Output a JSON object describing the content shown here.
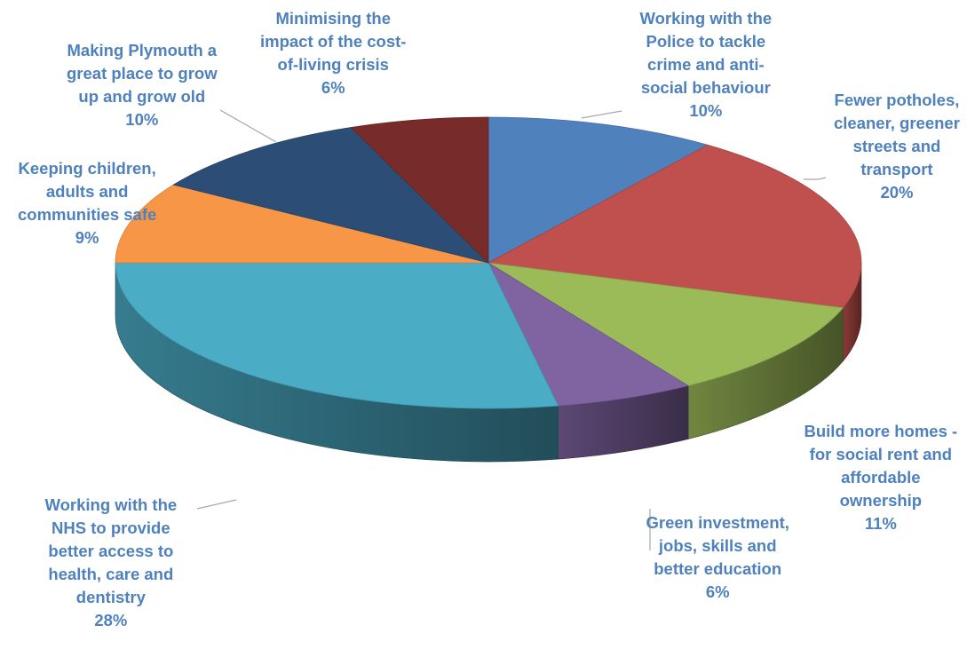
{
  "chart_data": {
    "type": "pie",
    "title": "",
    "three_d": true,
    "legend": "none",
    "slices": [
      {
        "lines": [
          "Working with the",
          "Police to tackle",
          "crime and anti-",
          "social behaviour"
        ],
        "value": 10,
        "pct_label": "10%",
        "color": "#4F81BD"
      },
      {
        "lines": [
          "Fewer potholes,",
          "cleaner, greener",
          "streets and",
          "transport"
        ],
        "value": 20,
        "pct_label": "20%",
        "color": "#C0504D"
      },
      {
        "lines": [
          "Build more homes -",
          "for social rent and",
          "affordable",
          "ownership"
        ],
        "value": 11,
        "pct_label": "11%",
        "color": "#9BBB59"
      },
      {
        "lines": [
          "Green investment,",
          "jobs, skills and",
          "better education"
        ],
        "value": 6,
        "pct_label": "6%",
        "color": "#8064A2"
      },
      {
        "lines": [
          "Working with the",
          "NHS to provide",
          "better access to",
          "health, care and",
          "dentistry"
        ],
        "value": 28,
        "pct_label": "28%",
        "color": "#4BACC6"
      },
      {
        "lines": [
          "Keeping children,",
          "adults and",
          "communities safe"
        ],
        "value": 9,
        "pct_label": "9%",
        "color": "#F79646"
      },
      {
        "lines": [
          "Making Plymouth a",
          "great place to grow",
          "up and grow old"
        ],
        "value": 10,
        "pct_label": "10%",
        "color": "#2C4D75"
      },
      {
        "lines": [
          "Minimising the",
          "impact of the cost-",
          "of-living crisis"
        ],
        "value": 6,
        "pct_label": "6%",
        "color": "#772C2A"
      }
    ]
  }
}
